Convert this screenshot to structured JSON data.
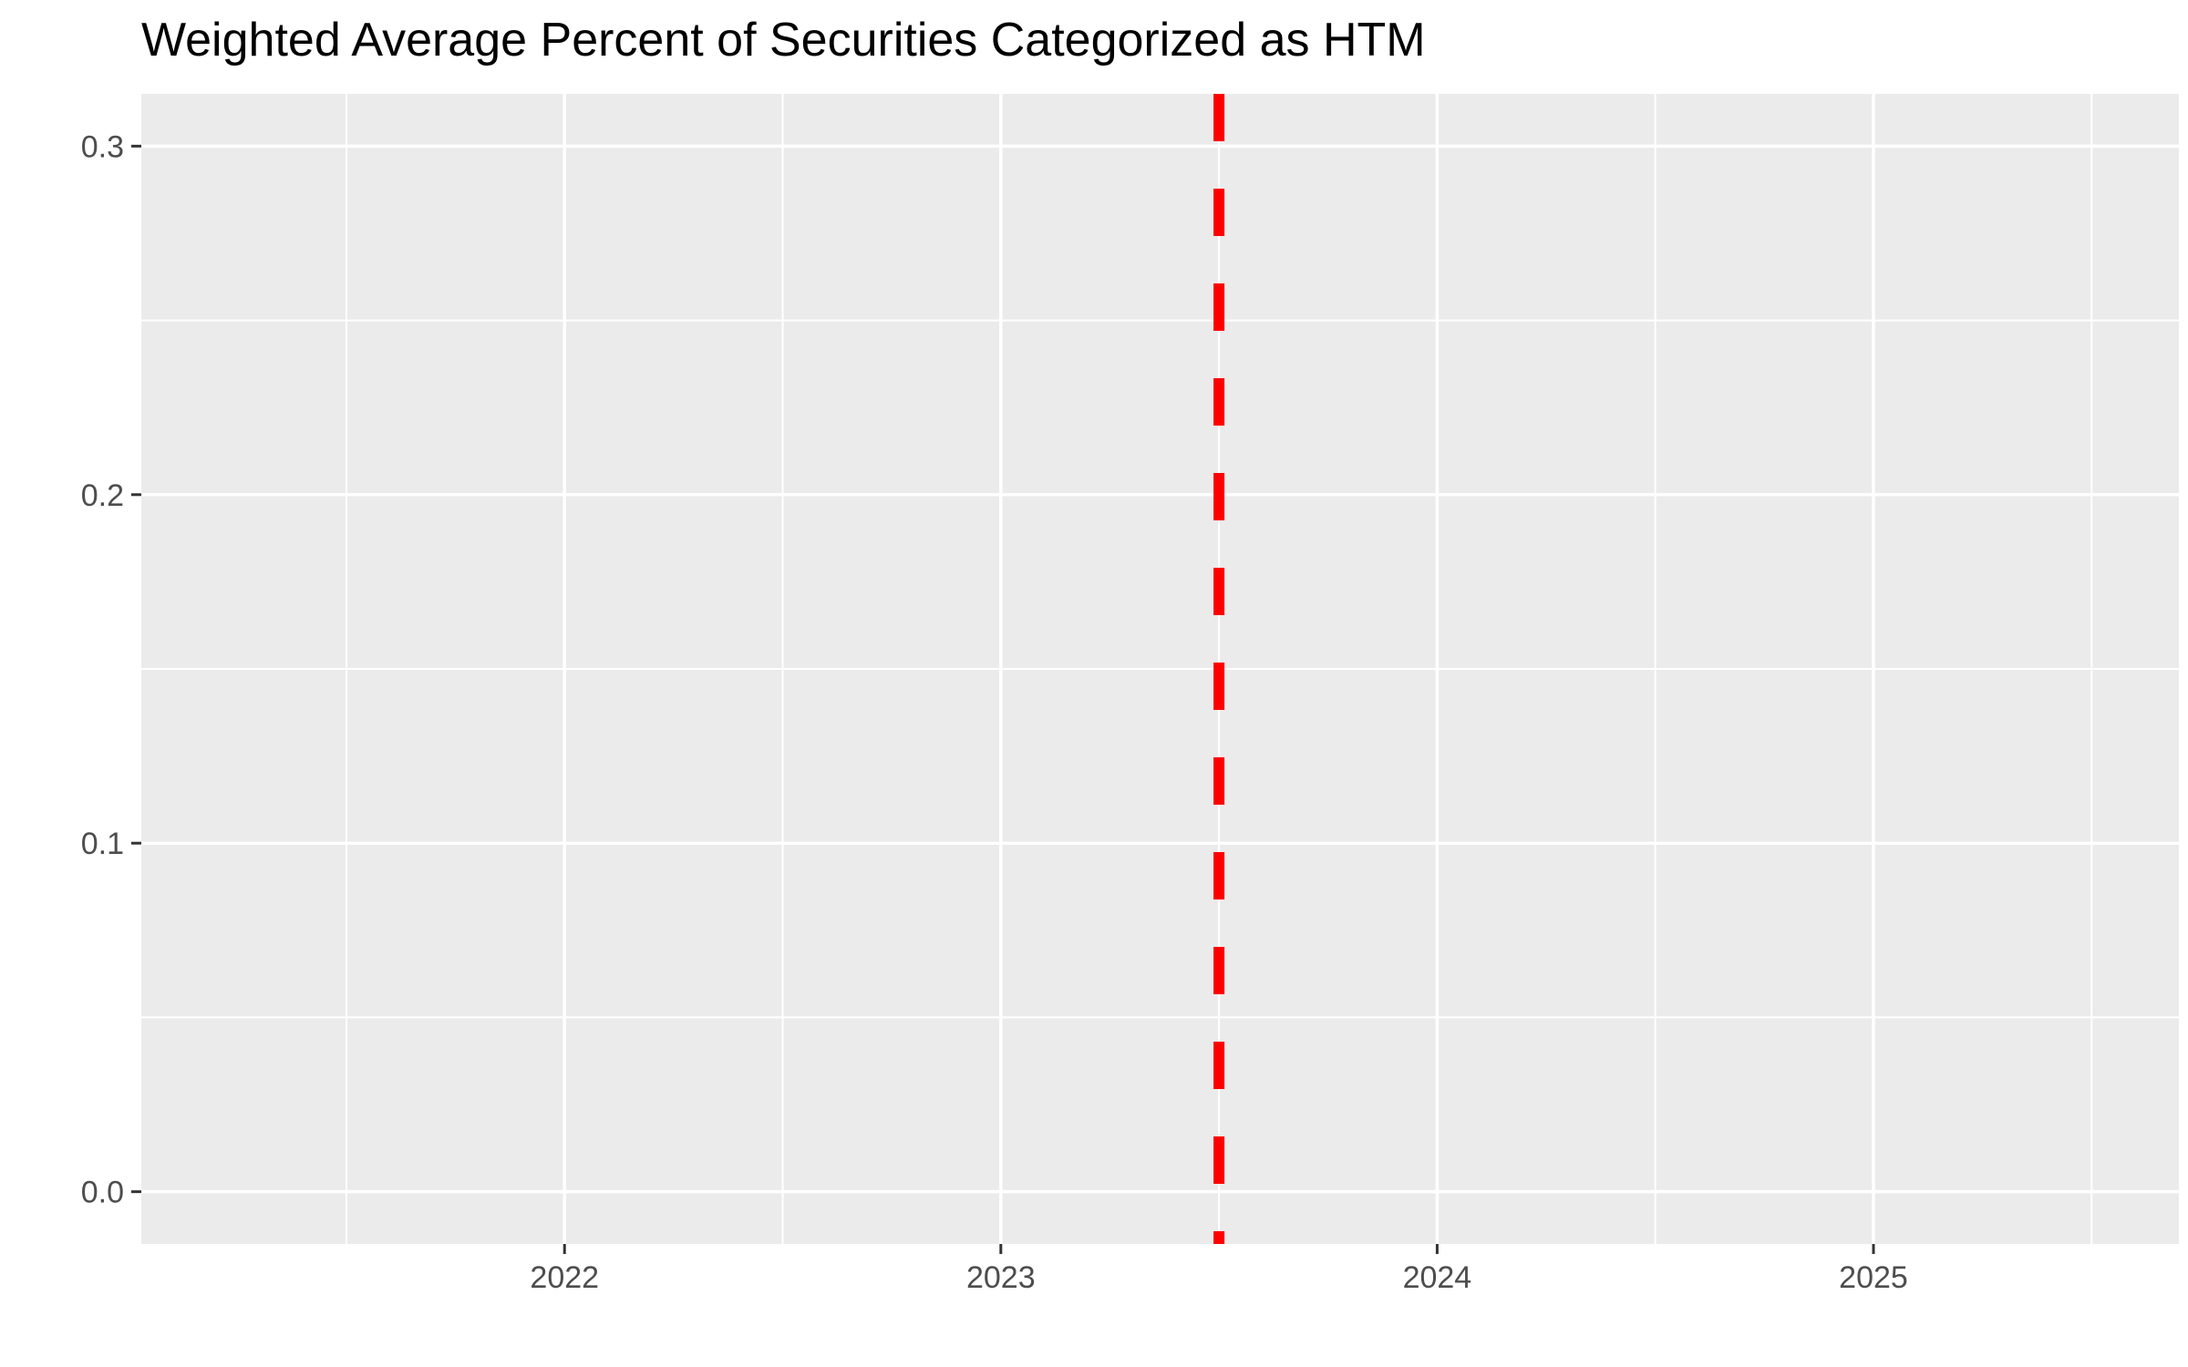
{
  "chart_data": {
    "type": "line",
    "title": "Weighted Average Percent of Securities Categorized as HTM",
    "xlabel": "",
    "ylabel": "",
    "x_ticks": [
      2022,
      2023,
      2024,
      2025
    ],
    "y_ticks": [
      "0.0",
      "0.1",
      "0.2",
      "0.3"
    ],
    "xlim": [
      2021.03,
      2025.7
    ],
    "ylim": [
      -0.015,
      0.315
    ],
    "series": [],
    "reference_lines": [
      {
        "axis": "x",
        "value": 2023.5,
        "color": "#ff0000",
        "style": "dashed"
      }
    ],
    "grid": true,
    "legend": "none",
    "colors": {
      "panel_background": "#ebebeb",
      "grid_line": "#ffffff",
      "reference_line": "#ff0000"
    }
  }
}
